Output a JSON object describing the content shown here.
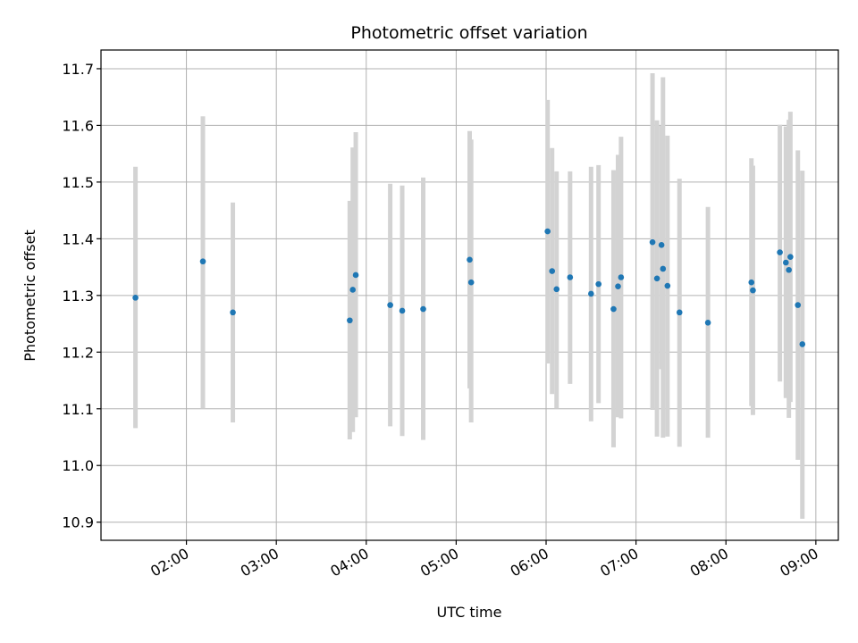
{
  "chart_data": {
    "type": "scatter",
    "title": "Photometric offset variation",
    "xlabel": "UTC time",
    "ylabel": "Photometric offset",
    "x_unit": "UTC time",
    "xlim": [
      "01:03",
      "09:15"
    ],
    "ylim": [
      10.868,
      11.733
    ],
    "x_ticks": [
      "02:00",
      "03:00",
      "04:00",
      "05:00",
      "06:00",
      "07:00",
      "08:00",
      "09:00"
    ],
    "y_ticks": [
      10.9,
      11.0,
      11.1,
      11.2,
      11.3,
      11.4,
      11.5,
      11.6,
      11.7
    ],
    "y_tick_labels": [
      "10.9",
      "11.0",
      "11.1",
      "11.2",
      "11.3",
      "11.4",
      "11.5",
      "11.6",
      "11.7"
    ],
    "grid": true,
    "marker_color": "#1f77b4",
    "errorbar_color": "#d3d3d3",
    "points": [
      {
        "x": "01:26",
        "y": 11.296,
        "low": 11.066,
        "high": 11.527
      },
      {
        "x": "02:11",
        "y": 11.36,
        "low": 11.1,
        "high": 11.616
      },
      {
        "x": "02:31",
        "y": 11.27,
        "low": 11.076,
        "high": 11.464
      },
      {
        "x": "03:49",
        "y": 11.256,
        "low": 11.046,
        "high": 11.467
      },
      {
        "x": "03:51",
        "y": 11.31,
        "low": 11.059,
        "high": 11.561
      },
      {
        "x": "03:53",
        "y": 11.336,
        "low": 11.085,
        "high": 11.588
      },
      {
        "x": "04:16",
        "y": 11.283,
        "low": 11.069,
        "high": 11.497
      },
      {
        "x": "04:24",
        "y": 11.273,
        "low": 11.052,
        "high": 11.494
      },
      {
        "x": "04:38",
        "y": 11.276,
        "low": 11.045,
        "high": 11.508
      },
      {
        "x": "05:09",
        "y": 11.363,
        "low": 11.136,
        "high": 11.59
      },
      {
        "x": "05:10",
        "y": 11.323,
        "low": 11.076,
        "high": 11.575
      },
      {
        "x": "06:01",
        "y": 11.413,
        "low": 11.18,
        "high": 11.645
      },
      {
        "x": "06:04",
        "y": 11.343,
        "low": 11.126,
        "high": 11.56
      },
      {
        "x": "06:07",
        "y": 11.311,
        "low": 11.1,
        "high": 11.519
      },
      {
        "x": "06:16",
        "y": 11.332,
        "low": 11.144,
        "high": 11.519
      },
      {
        "x": "06:30",
        "y": 11.303,
        "low": 11.078,
        "high": 11.527
      },
      {
        "x": "06:35",
        "y": 11.32,
        "low": 11.11,
        "high": 11.53
      },
      {
        "x": "06:45",
        "y": 11.276,
        "low": 11.032,
        "high": 11.521
      },
      {
        "x": "06:48",
        "y": 11.316,
        "low": 11.085,
        "high": 11.548
      },
      {
        "x": "06:50",
        "y": 11.332,
        "low": 11.083,
        "high": 11.58
      },
      {
        "x": "07:11",
        "y": 11.394,
        "low": 11.098,
        "high": 11.692
      },
      {
        "x": "07:14",
        "y": 11.33,
        "low": 11.051,
        "high": 11.609
      },
      {
        "x": "07:17",
        "y": 11.389,
        "low": 11.17,
        "high": 11.599
      },
      {
        "x": "07:18",
        "y": 11.347,
        "low": 11.049,
        "high": 11.685
      },
      {
        "x": "07:21",
        "y": 11.317,
        "low": 11.051,
        "high": 11.582
      },
      {
        "x": "07:29",
        "y": 11.27,
        "low": 11.033,
        "high": 11.506
      },
      {
        "x": "07:48",
        "y": 11.252,
        "low": 11.049,
        "high": 11.456
      },
      {
        "x": "08:17",
        "y": 11.323,
        "low": 11.105,
        "high": 11.542
      },
      {
        "x": "08:18",
        "y": 11.309,
        "low": 11.089,
        "high": 11.529
      },
      {
        "x": "08:36",
        "y": 11.376,
        "low": 11.148,
        "high": 11.601
      },
      {
        "x": "08:40",
        "y": 11.358,
        "low": 11.119,
        "high": 11.598
      },
      {
        "x": "08:42",
        "y": 11.345,
        "low": 11.084,
        "high": 11.61
      },
      {
        "x": "08:43",
        "y": 11.368,
        "low": 11.112,
        "high": 11.624
      },
      {
        "x": "08:48",
        "y": 11.283,
        "low": 11.01,
        "high": 11.556
      },
      {
        "x": "08:51",
        "y": 11.214,
        "low": 10.906,
        "high": 11.52
      }
    ]
  }
}
